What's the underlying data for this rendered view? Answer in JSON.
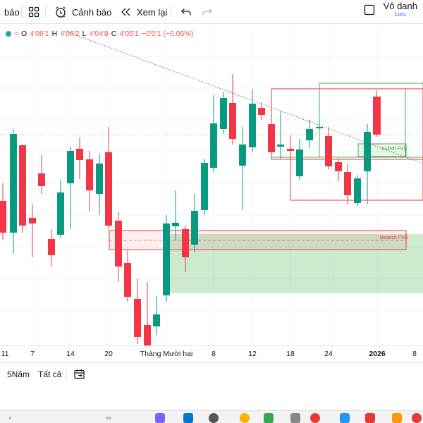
{
  "toolbar": {
    "fragment_label": "báo",
    "alert_label": "Cảnh báo",
    "replay_label": "Xem lại",
    "user_name": "Vô danh",
    "user_sub": "Lưu"
  },
  "ohlc": {
    "open_key": "O",
    "open": "4'06'1",
    "high_key": "H",
    "high": "4'06'2",
    "low_key": "L",
    "low": "4'04'8",
    "close_key": "C",
    "close": "4'05'1",
    "change": "−0'0'1 (−0.05%)"
  },
  "zones": {
    "bullish_label": "Bullish FVG",
    "bearish_label": "Bearish FVG"
  },
  "time_axis": [
    "11",
    "7",
    "14",
    "20",
    "Tháng Mười hai",
    "8",
    "12",
    "18",
    "24",
    "2026",
    "8"
  ],
  "bottom_bar": {
    "range_5y": "5Năm",
    "range_all": "Tất cả"
  },
  "colors": {
    "up": "#089981",
    "down": "#f23645",
    "bullish_zone": "#4caf50",
    "bearish_zone": "#f23645",
    "accent": "#2962ff"
  },
  "icons": [
    "layout-grid-icon",
    "alarm-clock-icon",
    "replay-icon",
    "undo-icon",
    "redo-icon",
    "square-checkbox-icon",
    "calendar-range-icon"
  ]
}
